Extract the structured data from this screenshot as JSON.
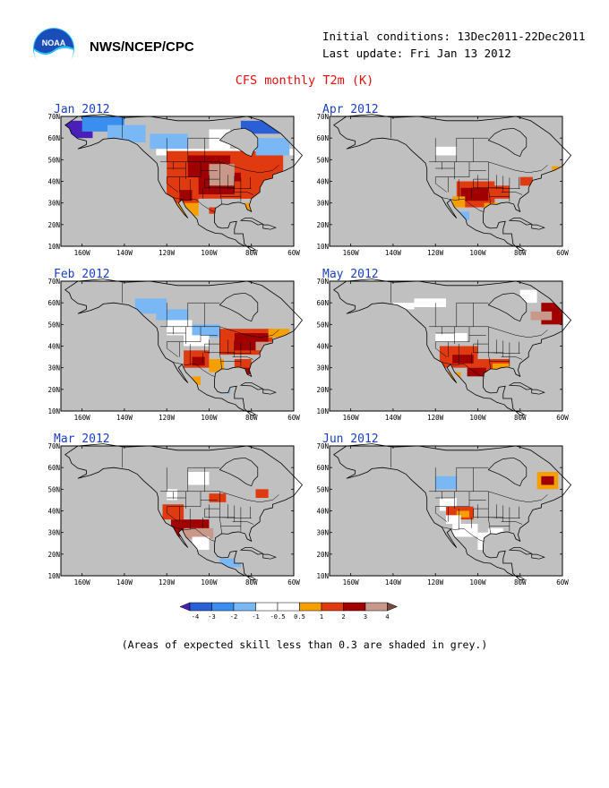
{
  "header": {
    "org": "NWS/NCEP/CPC",
    "logo_text": "NOAA",
    "initial_conditions": "Initial conditions: 13Dec2011-22Dec2011",
    "last_update": "Last update: Fri Jan 13 2012",
    "title": "CFS monthly T2m (K)"
  },
  "axes": {
    "lon_labels": [
      "160W",
      "140W",
      "120W",
      "100W",
      "80W",
      "60W"
    ],
    "lat_labels": [
      "70N",
      "60N",
      "50N",
      "40N",
      "30N",
      "20N",
      "10N"
    ]
  },
  "panels": [
    {
      "id": "jan",
      "title": "Jan 2012"
    },
    {
      "id": "apr",
      "title": "Apr 2012"
    },
    {
      "id": "feb",
      "title": "Feb 2012"
    },
    {
      "id": "may",
      "title": "May 2012"
    },
    {
      "id": "mar",
      "title": "Mar 2012"
    },
    {
      "id": "jun",
      "title": "Jun 2012"
    }
  ],
  "colorbar": {
    "labels": [
      "-4",
      "-3",
      "-2",
      "-1",
      "-0.5",
      "0.5",
      "1",
      "2",
      "3",
      "4"
    ],
    "colors": [
      "#4a1fb8",
      "#2a5fd6",
      "#3a8ef0",
      "#7ab8f5",
      "#ffffff",
      "#ffffff",
      "#f5a000",
      "#e03a10",
      "#a00000",
      "#c8988a",
      "#7a4a40"
    ]
  },
  "footnote": "(Areas of expected skill less than 0.3 are shaded in grey.)",
  "colors": {
    "ocean_land_grey": "#c0c0c0",
    "title_red": "#e01010",
    "panel_title_blue": "#1a3fbf"
  }
}
